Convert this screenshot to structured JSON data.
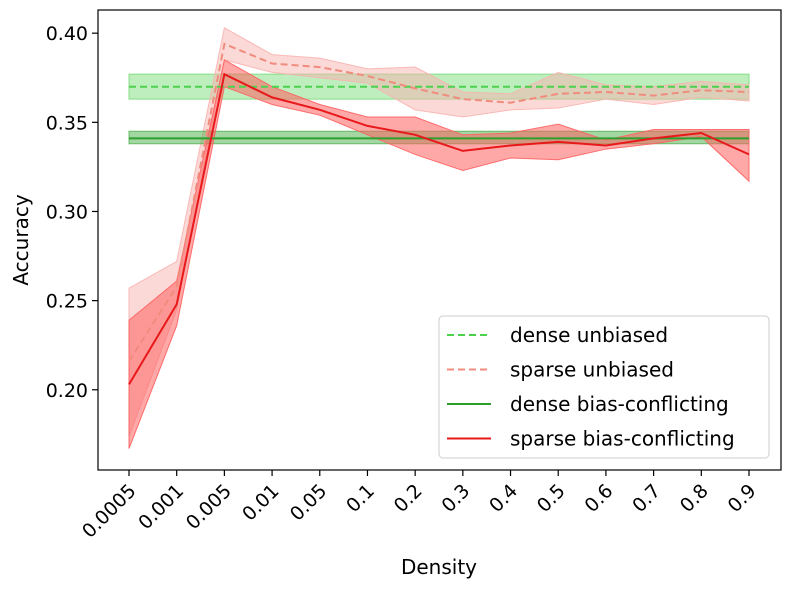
{
  "chart_data": {
    "type": "line",
    "title": "",
    "xlabel": "Density",
    "ylabel": "Accuracy",
    "categories": [
      "0.0005",
      "0.001",
      "0.005",
      "0.01",
      "0.05",
      "0.1",
      "0.2",
      "0.3",
      "0.4",
      "0.5",
      "0.6",
      "0.7",
      "0.8",
      "0.9"
    ],
    "ylim": [
      0.155,
      0.413
    ],
    "yticks": [
      "0.20",
      "0.25",
      "0.30",
      "0.35",
      "0.40"
    ],
    "legend_position": "lower-right",
    "series": [
      {
        "name": "dense unbiased",
        "style": "dashed",
        "color": "#4bd14b",
        "band_color": "#7ddc7d",
        "values": [
          0.37,
          0.37,
          0.37,
          0.37,
          0.37,
          0.37,
          0.37,
          0.37,
          0.37,
          0.37,
          0.37,
          0.37,
          0.37,
          0.37
        ],
        "lower": [
          0.363,
          0.363,
          0.363,
          0.363,
          0.363,
          0.363,
          0.363,
          0.363,
          0.363,
          0.363,
          0.363,
          0.363,
          0.363,
          0.363
        ],
        "upper": [
          0.377,
          0.377,
          0.377,
          0.377,
          0.377,
          0.377,
          0.377,
          0.377,
          0.377,
          0.377,
          0.377,
          0.377,
          0.377,
          0.377
        ]
      },
      {
        "name": "sparse unbiased",
        "style": "dashed",
        "color": "#f08c7e",
        "band_color": "#f8b4b0",
        "values": [
          0.216,
          0.258,
          0.394,
          0.383,
          0.381,
          0.376,
          0.369,
          0.363,
          0.361,
          0.366,
          0.367,
          0.365,
          0.368,
          0.367
        ],
        "lower": [
          0.174,
          0.245,
          0.385,
          0.378,
          0.375,
          0.372,
          0.357,
          0.353,
          0.357,
          0.358,
          0.363,
          0.36,
          0.364,
          0.362
        ],
        "upper": [
          0.257,
          0.272,
          0.403,
          0.388,
          0.386,
          0.38,
          0.381,
          0.367,
          0.366,
          0.378,
          0.371,
          0.37,
          0.373,
          0.371
        ]
      },
      {
        "name": "dense bias-conflicting",
        "style": "solid",
        "color": "#2ca02c",
        "band_color": "#5ab55a",
        "values": [
          0.341,
          0.341,
          0.341,
          0.341,
          0.341,
          0.341,
          0.341,
          0.341,
          0.341,
          0.341,
          0.341,
          0.341,
          0.341,
          0.341
        ],
        "lower": [
          0.338,
          0.338,
          0.338,
          0.338,
          0.338,
          0.338,
          0.338,
          0.338,
          0.338,
          0.338,
          0.338,
          0.338,
          0.338,
          0.338
        ],
        "upper": [
          0.345,
          0.345,
          0.345,
          0.345,
          0.345,
          0.345,
          0.345,
          0.345,
          0.345,
          0.345,
          0.345,
          0.345,
          0.345,
          0.345
        ]
      },
      {
        "name": "sparse bias-conflicting",
        "style": "solid",
        "color": "#e8191b",
        "band_color": "#ff6060",
        "values": [
          0.203,
          0.248,
          0.377,
          0.364,
          0.357,
          0.348,
          0.343,
          0.334,
          0.337,
          0.339,
          0.337,
          0.341,
          0.344,
          0.332
        ],
        "lower": [
          0.167,
          0.236,
          0.37,
          0.36,
          0.354,
          0.343,
          0.332,
          0.323,
          0.33,
          0.329,
          0.335,
          0.338,
          0.342,
          0.317
        ],
        "upper": [
          0.239,
          0.261,
          0.385,
          0.37,
          0.36,
          0.353,
          0.353,
          0.343,
          0.344,
          0.349,
          0.34,
          0.346,
          0.346,
          0.346
        ]
      }
    ]
  }
}
